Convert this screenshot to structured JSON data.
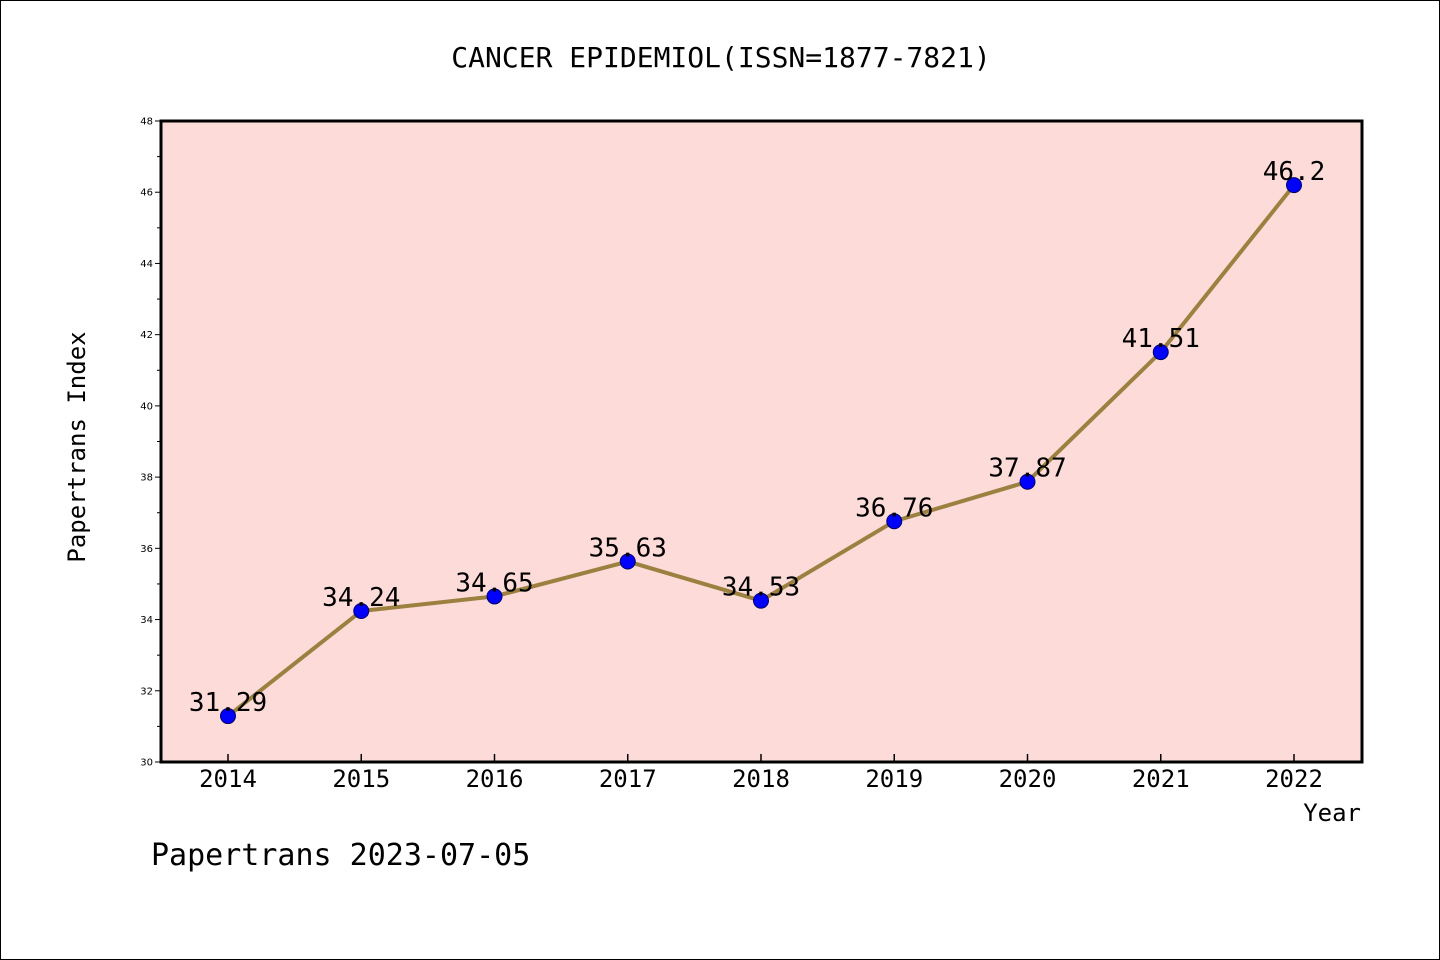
{
  "chart_data": {
    "type": "line",
    "title": "CANCER EPIDEMIOL(ISSN=1877-7821)",
    "xlabel": "Year",
    "ylabel": "Papertrans Index",
    "categories": [
      "2014",
      "2015",
      "2016",
      "2017",
      "2018",
      "2019",
      "2020",
      "2021",
      "2022"
    ],
    "values": [
      31.29,
      34.24,
      34.65,
      35.63,
      34.53,
      36.76,
      37.87,
      41.51,
      46.2
    ],
    "data_labels": [
      "31.29",
      "34.24",
      "34.65",
      "35.63",
      "34.53",
      "36.76",
      "37.87",
      "41.51",
      "46.2"
    ],
    "ylim": [
      30,
      48
    ],
    "y_ticks": [
      30,
      32,
      34,
      36,
      38,
      40,
      42,
      44,
      46,
      48
    ],
    "grid": false,
    "colors": {
      "plot_background": "#fddbd8",
      "line": "#9b8040",
      "marker": "#0000ff",
      "marker_edge": "#000066"
    }
  },
  "footer": {
    "text": "Papertrans 2023-07-05"
  }
}
